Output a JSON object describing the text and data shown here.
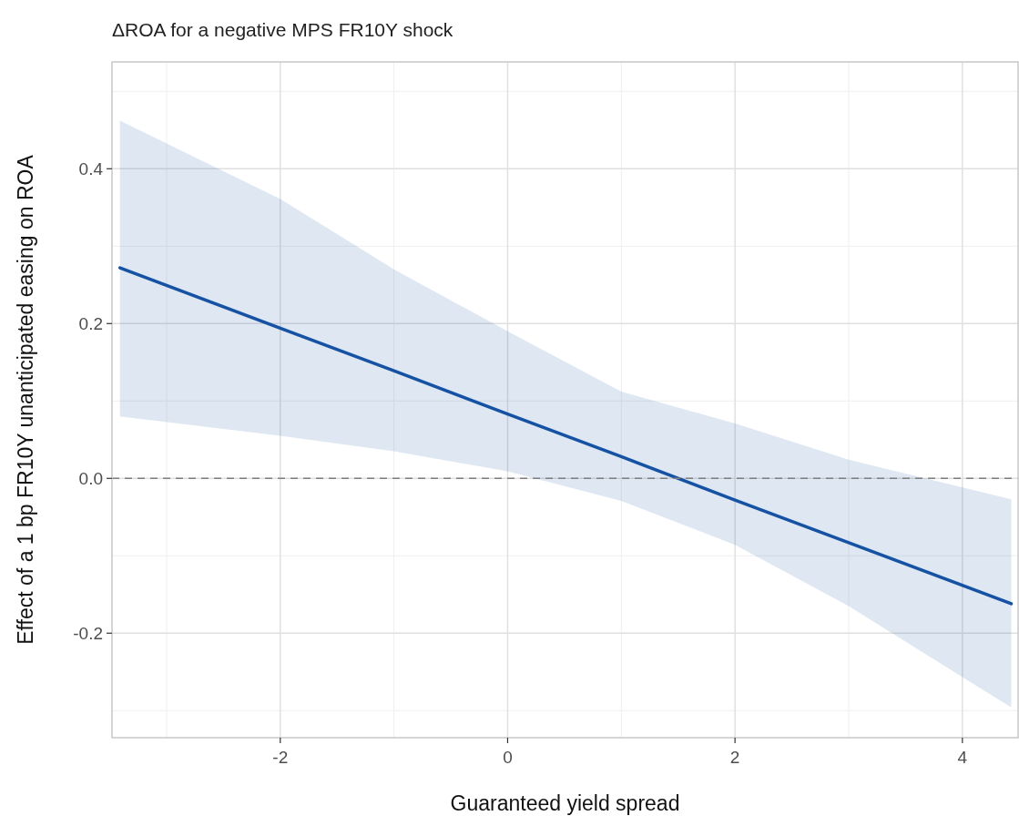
{
  "chart_data": {
    "type": "line",
    "title": "ΔROA for a negative MPS FR10Y shock",
    "xlabel": "Guaranteed yield spread",
    "ylabel": "Effect of a 1 bp FR10Y unanticipated easing on ROA",
    "series": [
      {
        "color": "#1552a3",
        "x": [
          -3.41,
          -2,
          -1,
          0,
          1,
          2,
          3,
          4.43
        ],
        "values": [
          0.272,
          0.194,
          0.139,
          0.083,
          0.028,
          -0.028,
          -0.083,
          -0.162
        ],
        "lower": [
          0.08,
          0.055,
          0.035,
          0.009,
          -0.029,
          -0.086,
          -0.165,
          -0.296
        ],
        "upper": [
          0.462,
          0.361,
          0.27,
          0.19,
          0.112,
          0.071,
          0.024,
          -0.027
        ]
      }
    ],
    "xlim": [
      -3.48,
      4.49
    ],
    "xticks": [
      -2,
      0,
      2,
      4
    ],
    "ylim": [
      -0.335,
      0.538
    ],
    "yticks": [
      {
        "value": -0.2,
        "label": "-0.2"
      },
      {
        "value": 0,
        "label": "0.0"
      },
      {
        "value": 0.2,
        "label": "0.2"
      },
      {
        "value": 0.4,
        "label": "0.4"
      }
    ],
    "grid": true,
    "marker": "none",
    "line_style": "solid",
    "ref_lines": [
      {
        "axis": "y",
        "value": 0,
        "color": "#808080",
        "line_style": "dashed"
      }
    ]
  }
}
